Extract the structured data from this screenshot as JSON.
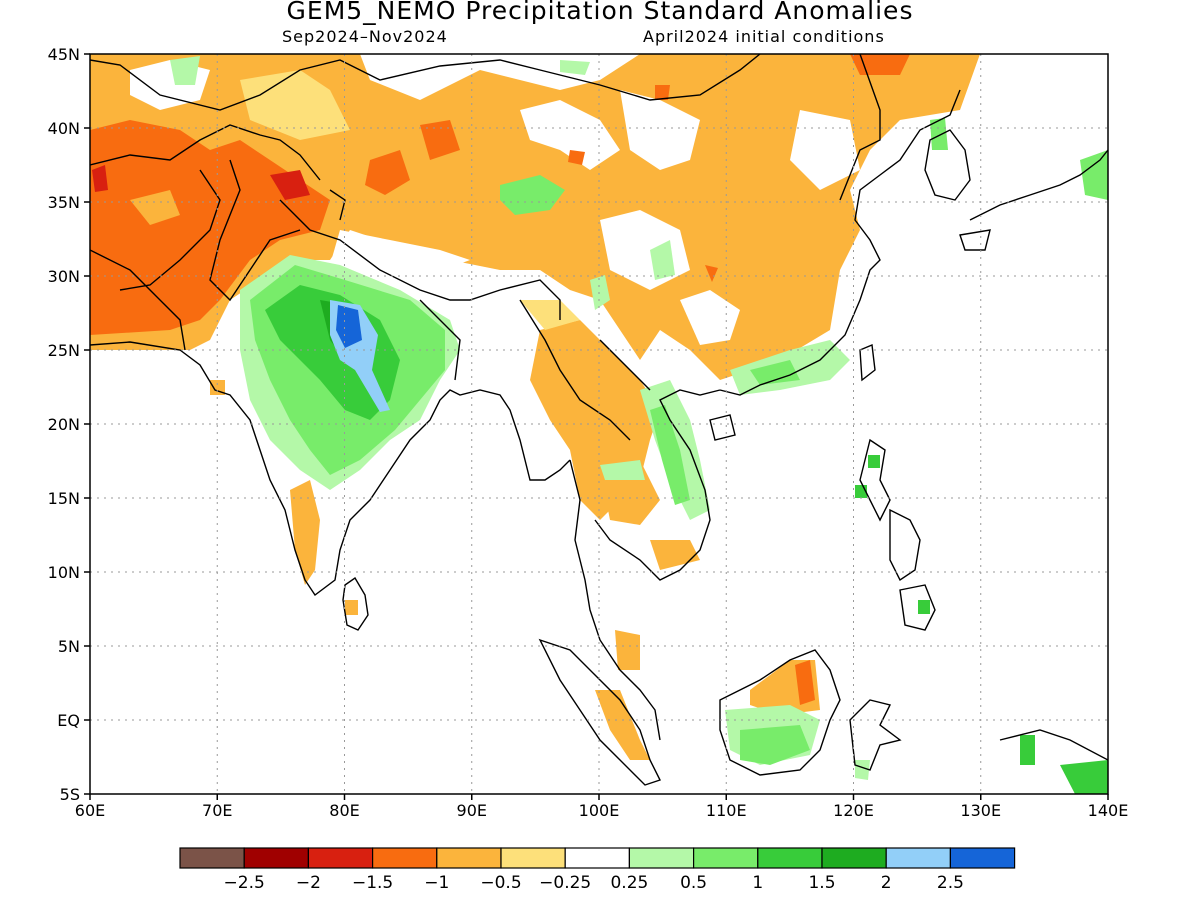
{
  "title": "GEM5_NEMO Precipitation Standard Anomalies",
  "subtitle_left": "Sep2024–Nov2024",
  "subtitle_right": "April2024 initial conditions",
  "axes": {
    "lon_min": 60,
    "lon_max": 140,
    "lat_min": -5,
    "lat_max": 45,
    "lon_ticks": [
      "60E",
      "70E",
      "80E",
      "90E",
      "100E",
      "110E",
      "120E",
      "130E",
      "140E"
    ],
    "lat_ticks": [
      "45N",
      "40N",
      "35N",
      "30N",
      "25N",
      "20N",
      "15N",
      "10N",
      "5N",
      "EQ",
      "5S"
    ],
    "grid": "dotted"
  },
  "colorbar": {
    "colors": [
      "#7b5348",
      "#a00000",
      "#d82010",
      "#f86c10",
      "#fbb43c",
      "#fde07a",
      "#ffffff",
      "#b4f8a8",
      "#78ec6a",
      "#38cc3a",
      "#1eac20",
      "#92cff8",
      "#1565d8"
    ],
    "labels": [
      "-2.5",
      "-2",
      "-1.5",
      "-1",
      "-0.5",
      "-0.25",
      "0.25",
      "0.5",
      "1",
      "1.5",
      "2",
      "2.5"
    ]
  },
  "legend_colors": {
    "brown": "#7b5348",
    "darkred": "#a00000",
    "red": "#d82010",
    "orange": "#f86c10",
    "lorange": "#fbb43c",
    "yellow": "#fde07a",
    "lgreen": "#b4f8a8",
    "green": "#78ec6a",
    "mgreen": "#38cc3a",
    "dgreen": "#1eac20",
    "lblue": "#92cff8",
    "blue": "#1565d8"
  }
}
